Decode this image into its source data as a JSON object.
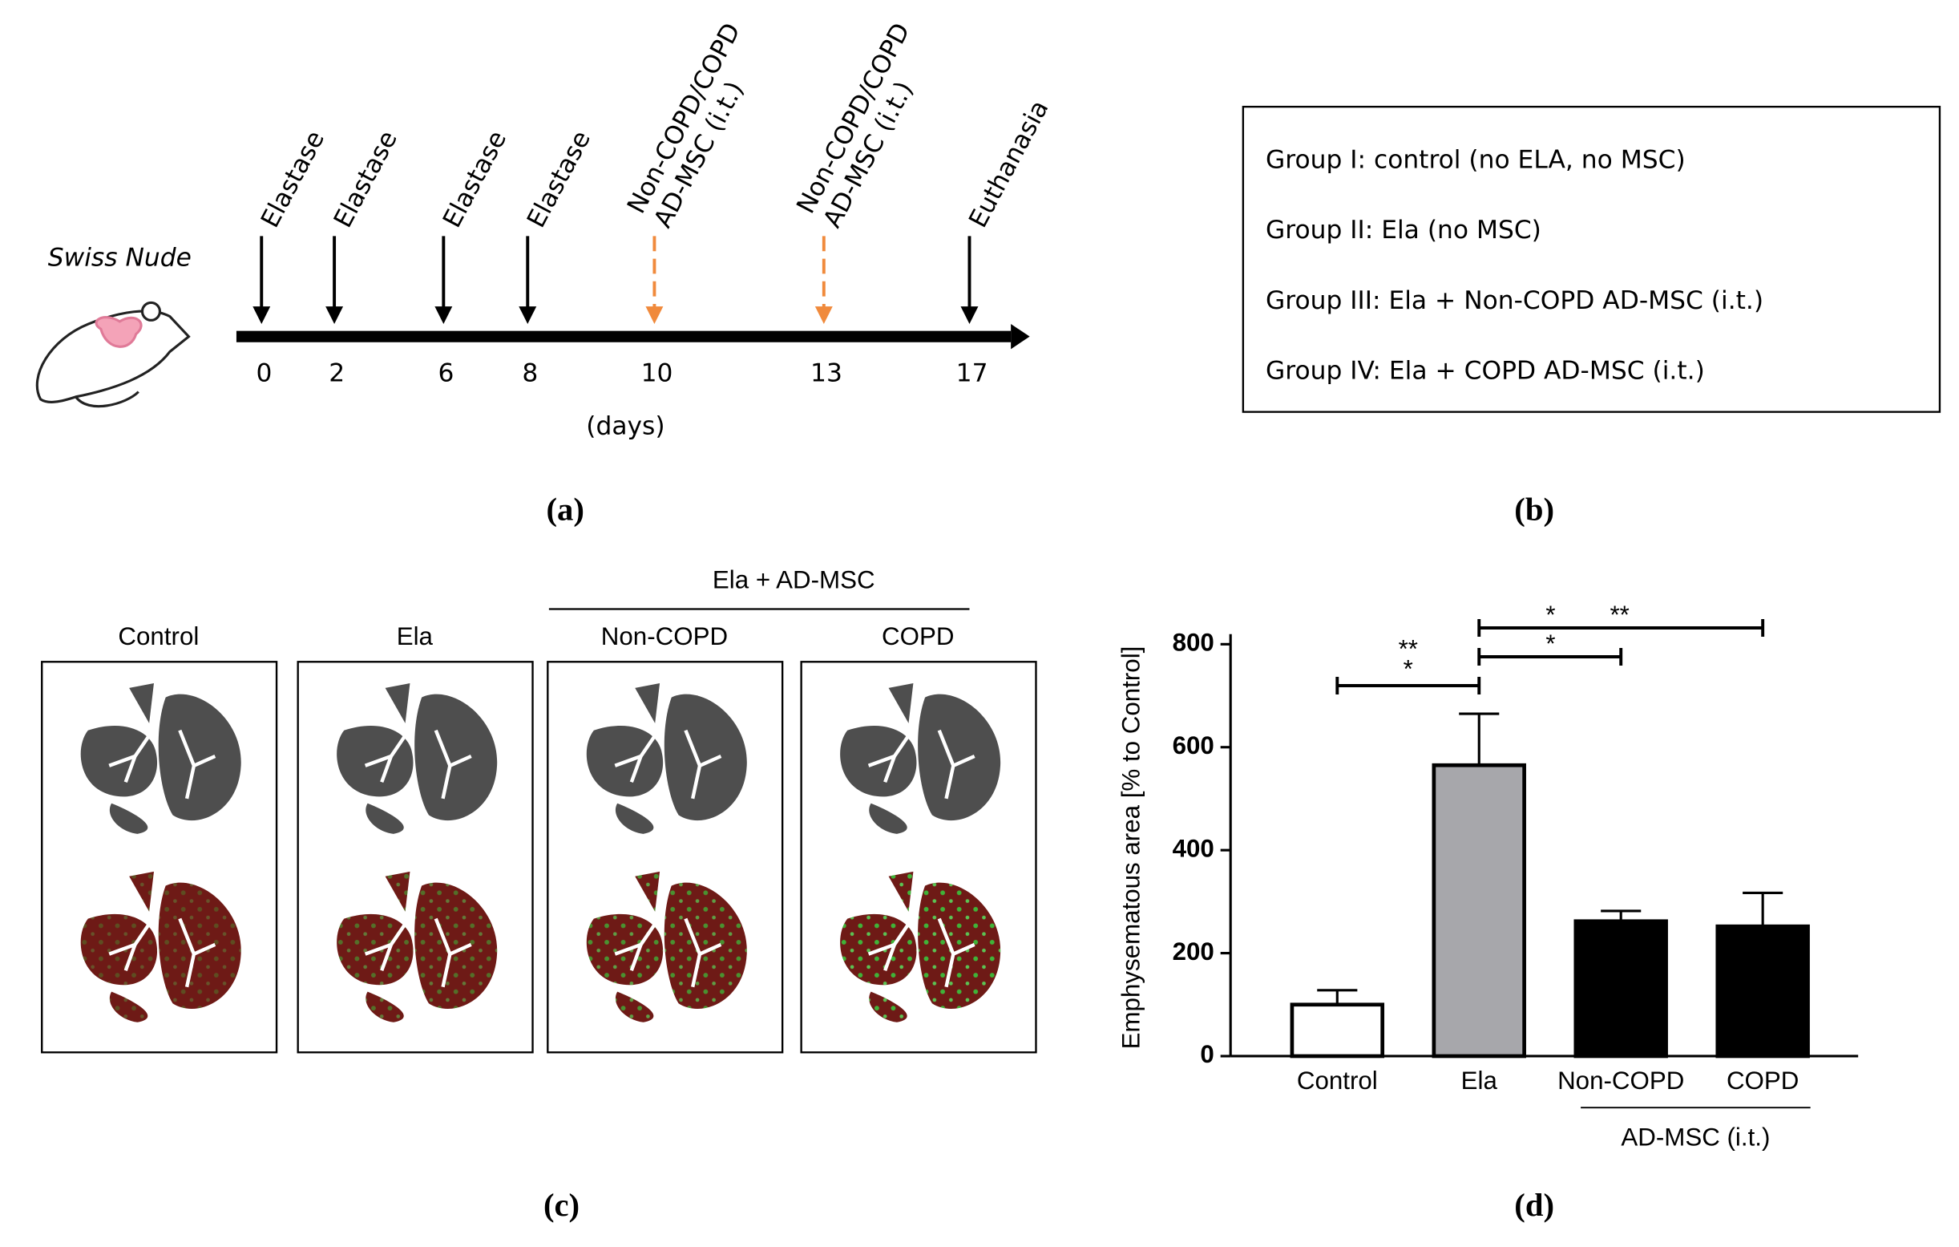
{
  "panels": {
    "a": "(a)",
    "b": "(b)",
    "c": "(c)",
    "d": "(d)"
  },
  "timeline": {
    "subject": "Swiss Nude",
    "axis_label": "(days)",
    "events": [
      {
        "day": 0,
        "label": [
          "Elastase"
        ],
        "color": "#000000"
      },
      {
        "day": 2,
        "label": [
          "Elastase"
        ],
        "color": "#000000"
      },
      {
        "day": 6,
        "label": [
          "Elastase"
        ],
        "color": "#000000"
      },
      {
        "day": 8,
        "label": [
          "Elastase"
        ],
        "color": "#000000"
      },
      {
        "day": 10,
        "label": [
          "Non-COPD/COPD",
          "AD-MSC (i.t.)"
        ],
        "color": "#f08a3c"
      },
      {
        "day": 13,
        "label": [
          "Non-COPD/COPD",
          "AD-MSC (i.t.)"
        ],
        "color": "#f08a3c"
      },
      {
        "day": 17,
        "label": [
          "Euthanasia"
        ],
        "color": "#000000"
      }
    ]
  },
  "groups": [
    "Group I: control (no ELA, no MSC)",
    "Group II: Ela (no MSC)",
    "Group III: Ela + Non-COPD AD-MSC (i.t.)",
    "Group IV: Ela + COPD AD-MSC (i.t.)"
  ],
  "images": {
    "group_header": "Ela + AD-MSC",
    "columns": [
      "Control",
      "Ela",
      "Non-COPD",
      "COPD"
    ]
  },
  "chart_data": {
    "type": "bar",
    "ylabel": "Emphysematous area [% to Control]",
    "categories": [
      "Control",
      "Ela",
      "Non-COPD",
      "COPD"
    ],
    "values": [
      100,
      565,
      262,
      252
    ],
    "errors": [
      28,
      100,
      20,
      65
    ],
    "colors": [
      "#ffffff",
      "#a7a7ab",
      "#000000",
      "#000000"
    ],
    "ylim": [
      0,
      800
    ],
    "yticks": [
      0,
      200,
      400,
      600,
      800
    ],
    "group_label": {
      "text": "AD-MSC (i.t.)",
      "categories": [
        "Non-COPD",
        "COPD"
      ]
    },
    "significance": [
      {
        "between": [
          "Control",
          "Ela"
        ],
        "labels": [
          "**",
          "*"
        ]
      },
      {
        "between": [
          "Ela",
          "COPD"
        ],
        "labels": [
          "*",
          "**"
        ]
      },
      {
        "between": [
          "Ela",
          "Non-COPD"
        ],
        "labels": [
          "*"
        ]
      }
    ]
  }
}
